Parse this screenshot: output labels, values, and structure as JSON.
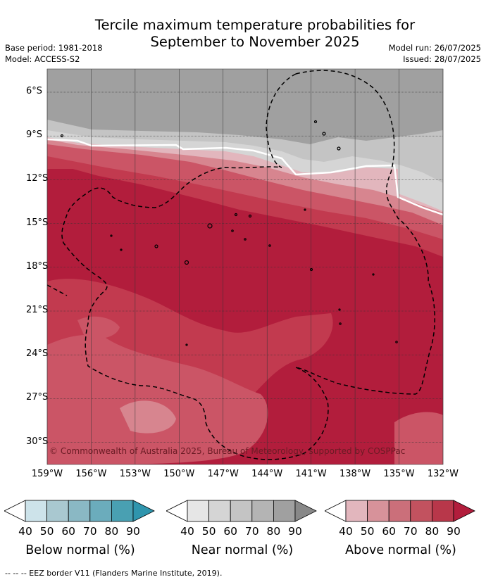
{
  "header": {
    "title_line1": "Tercile maximum temperature probabilities for",
    "title_line2": "September to November 2025",
    "base_period": "Base period: 1981-2018",
    "model": "Model: ACCESS-S2",
    "model_run": "Model run: 26/07/2025",
    "issued": "Issued: 28/07/2025"
  },
  "map": {
    "lat_labels": [
      "6°S",
      "9°S",
      "12°S",
      "15°S",
      "18°S",
      "21°S",
      "24°S",
      "27°S",
      "30°S"
    ],
    "lon_labels": [
      "159°W",
      "156°W",
      "153°W",
      "150°W",
      "147°W",
      "144°W",
      "141°W",
      "138°W",
      "135°W",
      "132°W"
    ],
    "copyright": "© Commonwealth of Australia 2025, Bureau of Meteorology, supported by COSPPac",
    "colors": {
      "near_90": "#a0a0a0",
      "near_70": "#c4c4c4",
      "near_60": "#d5d5d5",
      "above_90": "#b21d3c",
      "above_80": "#c23a4f",
      "above_70": "#cb5566",
      "above_60": "#d7858f",
      "above_50": "#e2b6bd",
      "land": "#ffffff",
      "eez": "#000000"
    }
  },
  "legends": [
    {
      "name": "Below normal (%)",
      "ticks": [
        "40",
        "50",
        "60",
        "70",
        "80",
        "90"
      ],
      "colors": [
        "#ffffff",
        "#cde3ea",
        "#a9c8d0",
        "#8ab8c4",
        "#6bacbc",
        "#49a0b2",
        "#2f95ad"
      ]
    },
    {
      "name": "Near normal (%)",
      "ticks": [
        "40",
        "50",
        "60",
        "70",
        "80",
        "90"
      ],
      "colors": [
        "#ffffff",
        "#e6e6e6",
        "#d5d5d5",
        "#c4c4c4",
        "#b4b4b4",
        "#a0a0a0",
        "#888888"
      ]
    },
    {
      "name": "Above normal (%)",
      "ticks": [
        "40",
        "50",
        "60",
        "70",
        "80",
        "90"
      ],
      "colors": [
        "#ffffff",
        "#e2b6bd",
        "#d7929a",
        "#cb6f7a",
        "#c2525f",
        "#b8374a",
        "#b21d3c"
      ]
    }
  ],
  "footer": "--  --  -- EEZ border V11 (Flanders Marine Institute, 2019)."
}
